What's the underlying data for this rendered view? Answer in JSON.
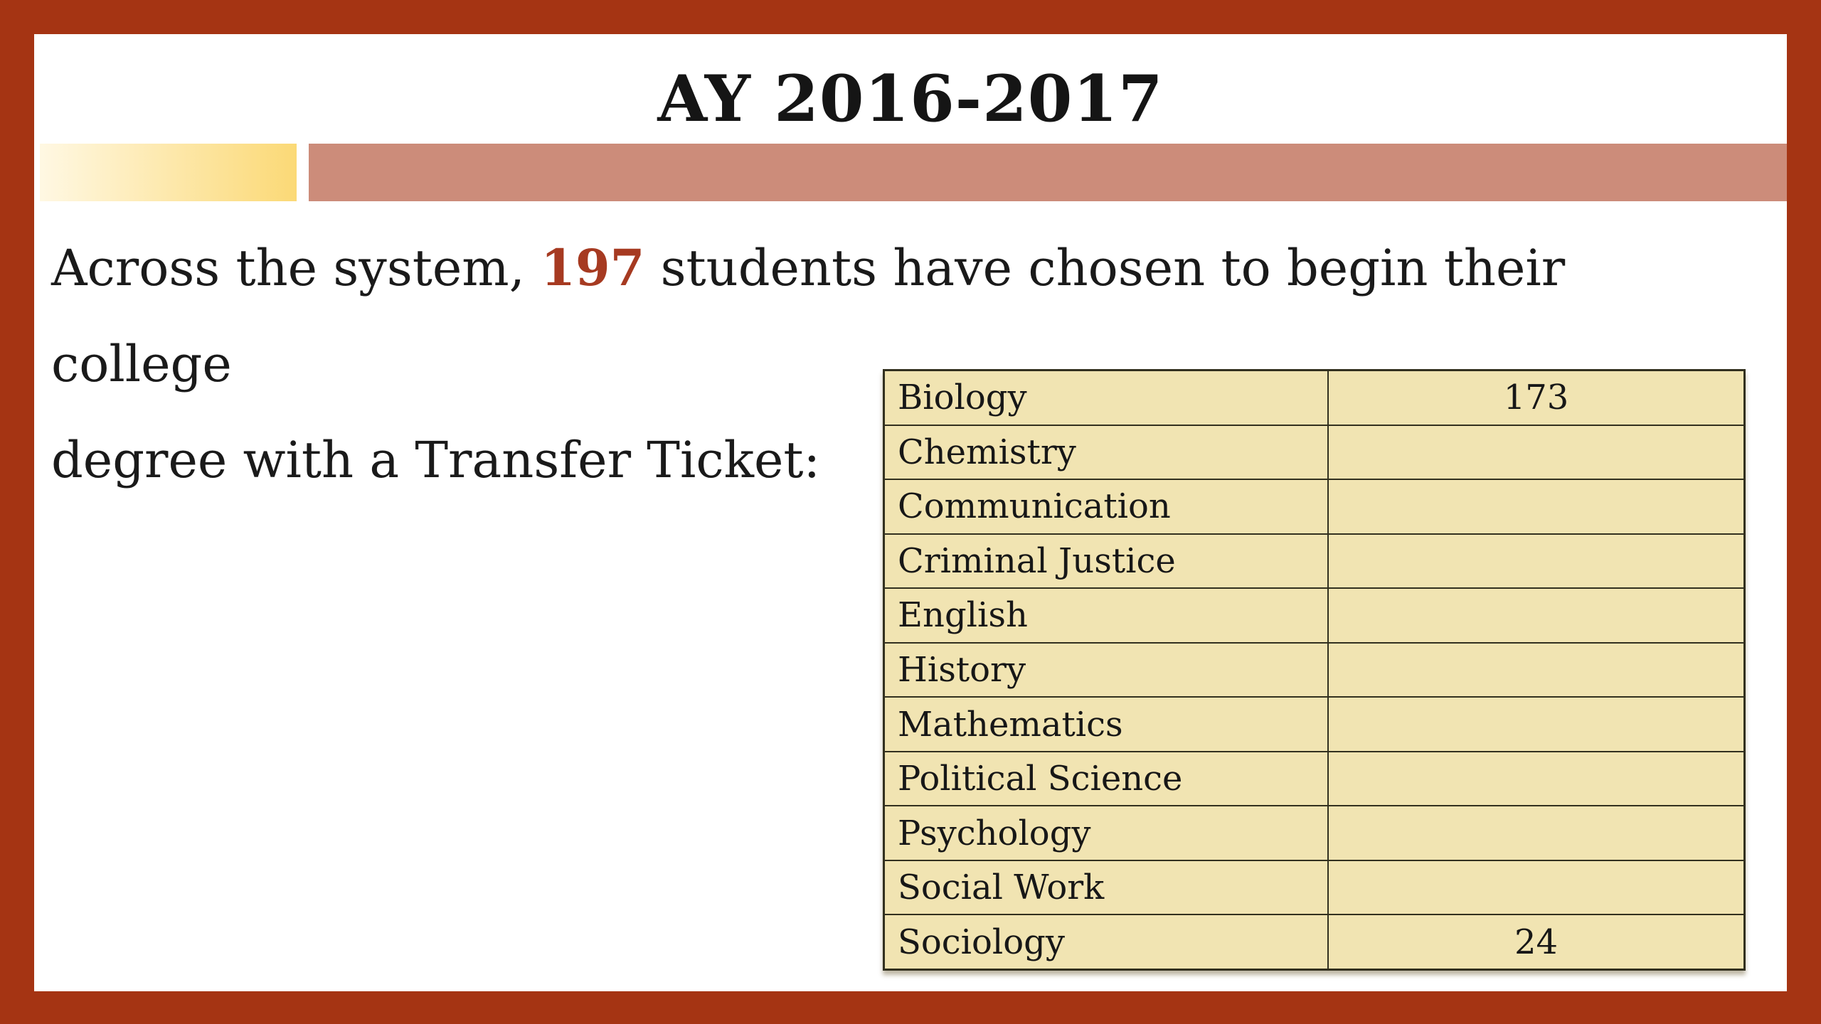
{
  "slide": {
    "title": "AY 2016-2017",
    "body": {
      "before_number": "Across the system, ",
      "number": "197",
      "after_number_line1": " students have chosen to begin their college",
      "line2": "degree with a Transfer Ticket:"
    },
    "table": {
      "rows": [
        {
          "label": "Biology",
          "value": "173"
        },
        {
          "label": "Chemistry",
          "value": ""
        },
        {
          "label": "Communication",
          "value": ""
        },
        {
          "label": "Criminal Justice",
          "value": ""
        },
        {
          "label": "English",
          "value": ""
        },
        {
          "label": "History",
          "value": ""
        },
        {
          "label": "Mathematics",
          "value": ""
        },
        {
          "label": "Political Science",
          "value": ""
        },
        {
          "label": "Psychology",
          "value": ""
        },
        {
          "label": "Social Work",
          "value": ""
        },
        {
          "label": "Sociology",
          "value": "24"
        }
      ]
    },
    "colors": {
      "frame": "#A53413",
      "accent_number": "#A63A21",
      "bar_salmon": "#CC8C7A",
      "bar_gold_start": "#FFF8E3",
      "bar_gold_end": "#FBD976",
      "table_background": "#F1E4B2"
    }
  }
}
